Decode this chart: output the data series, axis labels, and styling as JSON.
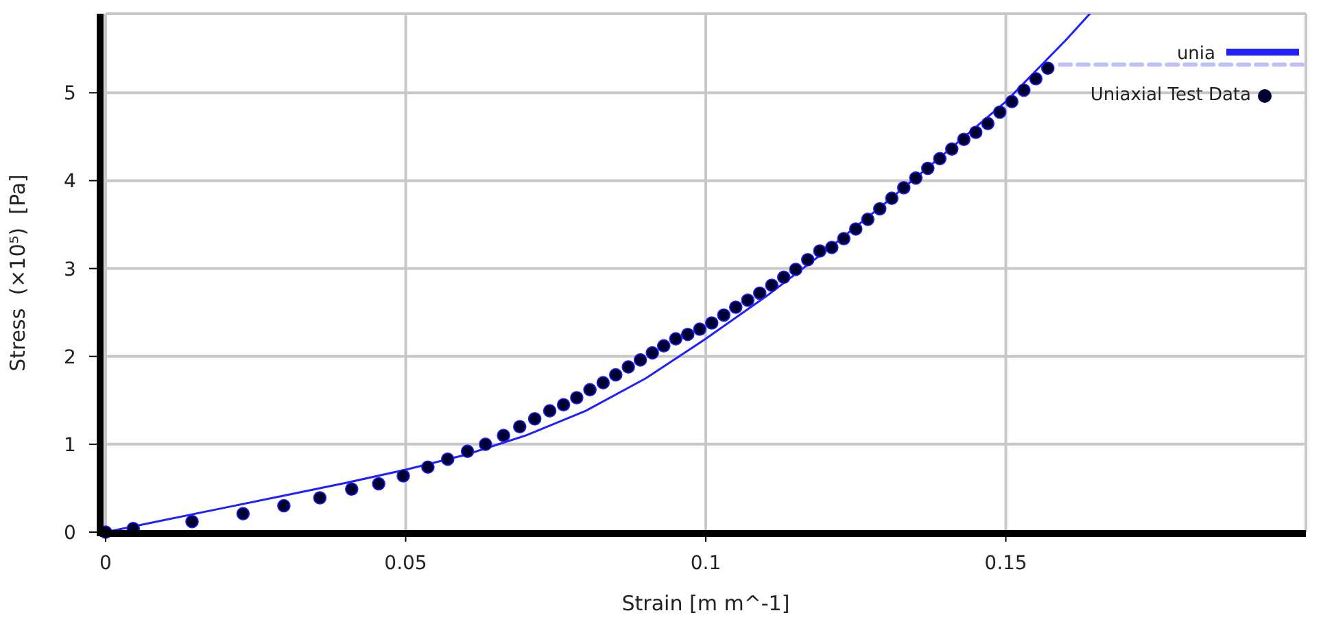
{
  "chart_data": {
    "type": "scatter",
    "xlabel": "Strain [m m^-1]",
    "ylabel": "Stress  (×10⁵)  [Pa]",
    "xlim": [
      0,
      0.2
    ],
    "ylim": [
      0,
      5.9
    ],
    "xticks": [
      0,
      0.05,
      0.1,
      0.15
    ],
    "yticks": [
      0,
      1,
      2,
      3,
      4,
      5
    ],
    "grid": true,
    "legend": "top right",
    "series": [
      {
        "name": "unia",
        "type": "line",
        "color": "#2020ff",
        "marker": "none",
        "line_style": "solid",
        "x": [
          0,
          0.01,
          0.02,
          0.03,
          0.04,
          0.05,
          0.06,
          0.07,
          0.08,
          0.09,
          0.1,
          0.11,
          0.12,
          0.13,
          0.14,
          0.15,
          0.16,
          0.164
        ],
        "values": [
          0,
          0.14,
          0.28,
          0.42,
          0.56,
          0.71,
          0.88,
          1.1,
          1.38,
          1.75,
          2.2,
          2.68,
          3.2,
          3.75,
          4.32,
          4.9,
          5.6,
          5.9
        ]
      },
      {
        "name": "Uniaxial Test Data",
        "color": "#000033",
        "marker": "circle",
        "x": [
          0,
          0.0046,
          0.0144,
          0.0229,
          0.0297,
          0.0357,
          0.041,
          0.0455,
          0.0496,
          0.0537,
          0.057,
          0.0603,
          0.0633,
          0.0663,
          0.069,
          0.0715,
          0.074,
          0.0763,
          0.0785,
          0.0807,
          0.0829,
          0.085,
          0.0871,
          0.0891,
          0.0911,
          0.093,
          0.095,
          0.097,
          0.099,
          0.101,
          0.103,
          0.105,
          0.107,
          0.109,
          0.111,
          0.113,
          0.115,
          0.117,
          0.119,
          0.121,
          0.123,
          0.125,
          0.127,
          0.129,
          0.131,
          0.133,
          0.135,
          0.137,
          0.139,
          0.141,
          0.143,
          0.145,
          0.147,
          0.149,
          0.151,
          0.153,
          0.155,
          0.157
        ],
        "values": [
          0,
          0.04,
          0.12,
          0.21,
          0.3,
          0.39,
          0.49,
          0.55,
          0.64,
          0.74,
          0.83,
          0.92,
          1.0,
          1.1,
          1.2,
          1.29,
          1.38,
          1.45,
          1.53,
          1.62,
          1.7,
          1.79,
          1.88,
          1.96,
          2.04,
          2.12,
          2.2,
          2.25,
          2.31,
          2.38,
          2.47,
          2.56,
          2.64,
          2.72,
          2.81,
          2.9,
          2.99,
          3.1,
          3.2,
          3.24,
          3.34,
          3.45,
          3.56,
          3.68,
          3.8,
          3.92,
          4.03,
          4.14,
          4.25,
          4.36,
          4.47,
          4.55,
          4.65,
          4.78,
          4.9,
          5.03,
          5.16,
          5.28
        ]
      },
      {
        "type": "line",
        "color": "#c0c0f8",
        "marker": "none",
        "line_style": "dashed",
        "x": [
          0.159,
          0.2
        ],
        "values": [
          5.32,
          5.32
        ]
      }
    ]
  }
}
